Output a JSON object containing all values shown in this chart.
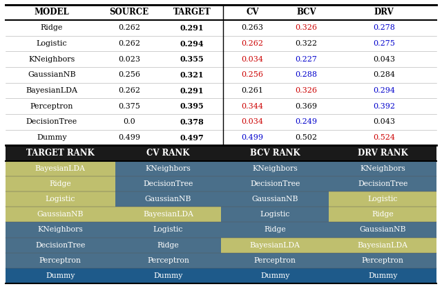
{
  "top_header": [
    "MODEL",
    "SOURCE",
    "TARGET",
    "CV",
    "BCV",
    "DRV"
  ],
  "top_rows": [
    {
      "model": "Ridge",
      "source": "0.262",
      "target": "0.291",
      "cv": "0.263",
      "bcv": "0.326",
      "drv": "0.278"
    },
    {
      "model": "Logistic",
      "source": "0.262",
      "target": "0.294",
      "cv": "0.262",
      "bcv": "0.322",
      "drv": "0.275"
    },
    {
      "model": "KNeighbors",
      "source": "0.023",
      "target": "0.355",
      "cv": "0.034",
      "bcv": "0.227",
      "drv": "0.043"
    },
    {
      "model": "GaussianNB",
      "source": "0.256",
      "target": "0.321",
      "cv": "0.256",
      "bcv": "0.288",
      "drv": "0.284"
    },
    {
      "model": "BayesianLDA",
      "source": "0.262",
      "target": "0.291",
      "cv": "0.261",
      "bcv": "0.326",
      "drv": "0.294"
    },
    {
      "model": "Perceptron",
      "source": "0.375",
      "target": "0.395",
      "cv": "0.344",
      "bcv": "0.369",
      "drv": "0.392"
    },
    {
      "model": "DecisionTree",
      "source": "0.0",
      "target": "0.378",
      "cv": "0.034",
      "bcv": "0.249",
      "drv": "0.043"
    },
    {
      "model": "Dummy",
      "source": "0.499",
      "target": "0.497",
      "cv": "0.499",
      "bcv": "0.502",
      "drv": "0.524"
    }
  ],
  "top_colors": {
    "Ridge": {
      "cv": "black",
      "bcv": "#cc0000",
      "drv": "#0000cc"
    },
    "Logistic": {
      "cv": "#cc0000",
      "bcv": "black",
      "drv": "#0000cc"
    },
    "KNeighbors": {
      "cv": "#cc0000",
      "bcv": "#0000cc",
      "drv": "black"
    },
    "GaussianNB": {
      "cv": "#cc0000",
      "bcv": "#0000cc",
      "drv": "black"
    },
    "BayesianLDA": {
      "cv": "black",
      "bcv": "#cc0000",
      "drv": "#0000cc"
    },
    "Perceptron": {
      "cv": "#cc0000",
      "bcv": "black",
      "drv": "#0000cc"
    },
    "DecisionTree": {
      "cv": "#cc0000",
      "bcv": "#0000cc",
      "drv": "black"
    },
    "Dummy": {
      "cv": "#0000cc",
      "bcv": "black",
      "drv": "#cc0000"
    }
  },
  "bottom_header": [
    "TARGET RANK",
    "CV RANK",
    "BCV RANK",
    "DRV RANK"
  ],
  "bottom_rows": [
    [
      "BayesianLDA",
      "KNeighbors",
      "KNeighbors",
      "KNeighbors"
    ],
    [
      "Ridge",
      "DecisionTree",
      "DecisionTree",
      "DecisionTree"
    ],
    [
      "Logistic",
      "GaussianNB",
      "GaussianNB",
      "Logistic"
    ],
    [
      "GaussianNB",
      "BayesianLDA",
      "Logistic",
      "Ridge"
    ],
    [
      "KNeighbors",
      "Logistic",
      "Ridge",
      "GaussianNB"
    ],
    [
      "DecisionTree",
      "Ridge",
      "BayesianLDA",
      "BayesianLDA"
    ],
    [
      "Perceptron",
      "Perceptron",
      "Perceptron",
      "Perceptron"
    ],
    [
      "Dummy",
      "Dummy",
      "Dummy",
      "Dummy"
    ]
  ],
  "bottom_bg": {
    "row0": [
      "#bfbf6e",
      "#4a6f8a",
      "#4a6f8a",
      "#4a6f8a"
    ],
    "row1": [
      "#bfbf6e",
      "#4a6f8a",
      "#4a6f8a",
      "#4a6f8a"
    ],
    "row2": [
      "#bfbf6e",
      "#4a6f8a",
      "#4a6f8a",
      "#bfbf6e"
    ],
    "row3": [
      "#bfbf6e",
      "#bfbf6e",
      "#4a6f8a",
      "#bfbf6e"
    ],
    "row4": [
      "#4a6f8a",
      "#4a6f8a",
      "#4a6f8a",
      "#4a6f8a"
    ],
    "row5": [
      "#4a6f8a",
      "#4a6f8a",
      "#bfbf6e",
      "#bfbf6e"
    ],
    "row6": [
      "#4a6f8a",
      "#4a6f8a",
      "#4a6f8a",
      "#4a6f8a"
    ],
    "row7": [
      "#1e5a8a",
      "#1e5a8a",
      "#1e5a8a",
      "#1e5a8a"
    ]
  },
  "bottom_header_bg": "#1a1a1a",
  "fig_width": 6.4,
  "fig_height": 4.34,
  "dpi": 100
}
